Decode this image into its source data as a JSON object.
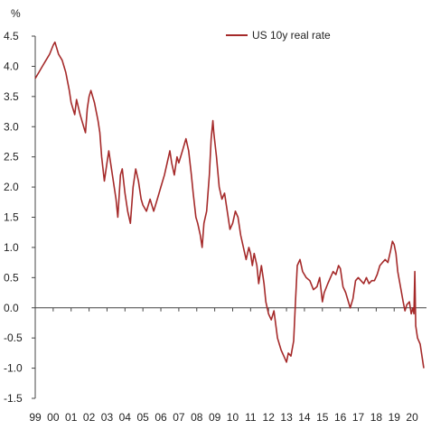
{
  "chart_data": {
    "type": "line",
    "unit_label": "%",
    "title": "",
    "xlabel": "",
    "ylabel": "",
    "ylim": [
      -1.5,
      4.5
    ],
    "yticks": [
      -1.5,
      -1.0,
      -0.5,
      0.0,
      0.5,
      1.0,
      1.5,
      2.0,
      2.5,
      3.0,
      3.5,
      4.0,
      4.5
    ],
    "xlim": [
      1999.0,
      2020.8
    ],
    "xticks": [
      {
        "x": 1999,
        "label": "99"
      },
      {
        "x": 2000,
        "label": "00"
      },
      {
        "x": 2001,
        "label": "01"
      },
      {
        "x": 2002,
        "label": "02"
      },
      {
        "x": 2003,
        "label": "03"
      },
      {
        "x": 2004,
        "label": "04"
      },
      {
        "x": 2005,
        "label": "05"
      },
      {
        "x": 2006,
        "label": "06"
      },
      {
        "x": 2007,
        "label": "07"
      },
      {
        "x": 2008,
        "label": "08"
      },
      {
        "x": 2009,
        "label": "09"
      },
      {
        "x": 2010,
        "label": "10"
      },
      {
        "x": 2011,
        "label": "11"
      },
      {
        "x": 2012,
        "label": "12"
      },
      {
        "x": 2013,
        "label": "13"
      },
      {
        "x": 2014,
        "label": "14"
      },
      {
        "x": 2015,
        "label": "15"
      },
      {
        "x": 2016,
        "label": "16"
      },
      {
        "x": 2017,
        "label": "17"
      },
      {
        "x": 2018,
        "label": "18"
      },
      {
        "x": 2019,
        "label": "19"
      },
      {
        "x": 2020,
        "label": "20"
      }
    ],
    "grid": false,
    "legend": {
      "position": "top-right"
    },
    "series": [
      {
        "name": "US 10y real rate",
        "color": "#a52a2a",
        "points": [
          [
            1999.0,
            3.8
          ],
          [
            1999.2,
            3.9
          ],
          [
            1999.4,
            4.0
          ],
          [
            1999.6,
            4.1
          ],
          [
            1999.8,
            4.2
          ],
          [
            2000.0,
            4.35
          ],
          [
            2000.1,
            4.4
          ],
          [
            2000.3,
            4.2
          ],
          [
            2000.5,
            4.1
          ],
          [
            2000.7,
            3.9
          ],
          [
            2000.9,
            3.6
          ],
          [
            2001.0,
            3.4
          ],
          [
            2001.2,
            3.2
          ],
          [
            2001.3,
            3.45
          ],
          [
            2001.5,
            3.2
          ],
          [
            2001.7,
            3.0
          ],
          [
            2001.8,
            2.9
          ],
          [
            2001.9,
            3.3
          ],
          [
            2002.0,
            3.5
          ],
          [
            2002.1,
            3.6
          ],
          [
            2002.3,
            3.4
          ],
          [
            2002.5,
            3.1
          ],
          [
            2002.6,
            2.9
          ],
          [
            2002.7,
            2.5
          ],
          [
            2002.85,
            2.1
          ],
          [
            2003.0,
            2.4
          ],
          [
            2003.1,
            2.6
          ],
          [
            2003.3,
            2.2
          ],
          [
            2003.5,
            1.8
          ],
          [
            2003.6,
            1.5
          ],
          [
            2003.75,
            2.2
          ],
          [
            2003.85,
            2.3
          ],
          [
            2004.0,
            1.9
          ],
          [
            2004.15,
            1.6
          ],
          [
            2004.3,
            1.4
          ],
          [
            2004.45,
            2.0
          ],
          [
            2004.6,
            2.3
          ],
          [
            2004.75,
            2.1
          ],
          [
            2004.9,
            1.8
          ],
          [
            2005.0,
            1.7
          ],
          [
            2005.2,
            1.6
          ],
          [
            2005.4,
            1.8
          ],
          [
            2005.6,
            1.6
          ],
          [
            2005.8,
            1.8
          ],
          [
            2006.0,
            2.0
          ],
          [
            2006.2,
            2.2
          ],
          [
            2006.35,
            2.4
          ],
          [
            2006.5,
            2.6
          ],
          [
            2006.6,
            2.4
          ],
          [
            2006.75,
            2.2
          ],
          [
            2006.9,
            2.5
          ],
          [
            2007.0,
            2.4
          ],
          [
            2007.2,
            2.6
          ],
          [
            2007.4,
            2.8
          ],
          [
            2007.55,
            2.6
          ],
          [
            2007.7,
            2.2
          ],
          [
            2007.8,
            1.9
          ],
          [
            2007.95,
            1.5
          ],
          [
            2008.05,
            1.4
          ],
          [
            2008.2,
            1.2
          ],
          [
            2008.3,
            1.0
          ],
          [
            2008.4,
            1.4
          ],
          [
            2008.55,
            1.6
          ],
          [
            2008.7,
            2.2
          ],
          [
            2008.8,
            2.8
          ],
          [
            2008.9,
            3.1
          ],
          [
            2008.95,
            2.9
          ],
          [
            2009.1,
            2.5
          ],
          [
            2009.25,
            2.0
          ],
          [
            2009.4,
            1.8
          ],
          [
            2009.55,
            1.9
          ],
          [
            2009.7,
            1.6
          ],
          [
            2009.85,
            1.3
          ],
          [
            2010.0,
            1.4
          ],
          [
            2010.15,
            1.6
          ],
          [
            2010.3,
            1.5
          ],
          [
            2010.45,
            1.2
          ],
          [
            2010.6,
            1.0
          ],
          [
            2010.75,
            0.8
          ],
          [
            2010.9,
            1.0
          ],
          [
            2011.0,
            0.9
          ],
          [
            2011.1,
            0.7
          ],
          [
            2011.2,
            0.9
          ],
          [
            2011.35,
            0.7
          ],
          [
            2011.45,
            0.4
          ],
          [
            2011.6,
            0.7
          ],
          [
            2011.75,
            0.4
          ],
          [
            2011.85,
            0.1
          ],
          [
            2012.0,
            -0.1
          ],
          [
            2012.15,
            -0.2
          ],
          [
            2012.3,
            -0.05
          ],
          [
            2012.5,
            -0.5
          ],
          [
            2012.7,
            -0.7
          ],
          [
            2012.85,
            -0.8
          ],
          [
            2013.0,
            -0.9
          ],
          [
            2013.1,
            -0.75
          ],
          [
            2013.25,
            -0.8
          ],
          [
            2013.4,
            -0.55
          ],
          [
            2013.5,
            0.1
          ],
          [
            2013.6,
            0.7
          ],
          [
            2013.75,
            0.8
          ],
          [
            2013.9,
            0.6
          ],
          [
            2014.1,
            0.5
          ],
          [
            2014.3,
            0.45
          ],
          [
            2014.5,
            0.3
          ],
          [
            2014.7,
            0.35
          ],
          [
            2014.85,
            0.5
          ],
          [
            2015.0,
            0.1
          ],
          [
            2015.1,
            0.25
          ],
          [
            2015.3,
            0.4
          ],
          [
            2015.45,
            0.5
          ],
          [
            2015.6,
            0.6
          ],
          [
            2015.75,
            0.55
          ],
          [
            2015.9,
            0.7
          ],
          [
            2016.0,
            0.65
          ],
          [
            2016.15,
            0.35
          ],
          [
            2016.3,
            0.25
          ],
          [
            2016.45,
            0.1
          ],
          [
            2016.55,
            0.0
          ],
          [
            2016.7,
            0.15
          ],
          [
            2016.85,
            0.45
          ],
          [
            2017.0,
            0.5
          ],
          [
            2017.15,
            0.45
          ],
          [
            2017.3,
            0.4
          ],
          [
            2017.45,
            0.5
          ],
          [
            2017.6,
            0.4
          ],
          [
            2017.75,
            0.45
          ],
          [
            2017.9,
            0.45
          ],
          [
            2018.05,
            0.55
          ],
          [
            2018.2,
            0.7
          ],
          [
            2018.35,
            0.75
          ],
          [
            2018.5,
            0.8
          ],
          [
            2018.65,
            0.75
          ],
          [
            2018.8,
            0.95
          ],
          [
            2018.9,
            1.1
          ],
          [
            2019.0,
            1.05
          ],
          [
            2019.1,
            0.9
          ],
          [
            2019.2,
            0.6
          ],
          [
            2019.35,
            0.35
          ],
          [
            2019.5,
            0.1
          ],
          [
            2019.6,
            -0.05
          ],
          [
            2019.7,
            0.05
          ],
          [
            2019.85,
            0.1
          ],
          [
            2019.95,
            -0.1
          ],
          [
            2020.05,
            0.0
          ],
          [
            2020.1,
            -0.1
          ],
          [
            2020.15,
            0.6
          ],
          [
            2020.2,
            -0.3
          ],
          [
            2020.3,
            -0.5
          ],
          [
            2020.45,
            -0.6
          ],
          [
            2020.55,
            -0.8
          ],
          [
            2020.65,
            -1.0
          ]
        ]
      }
    ]
  }
}
